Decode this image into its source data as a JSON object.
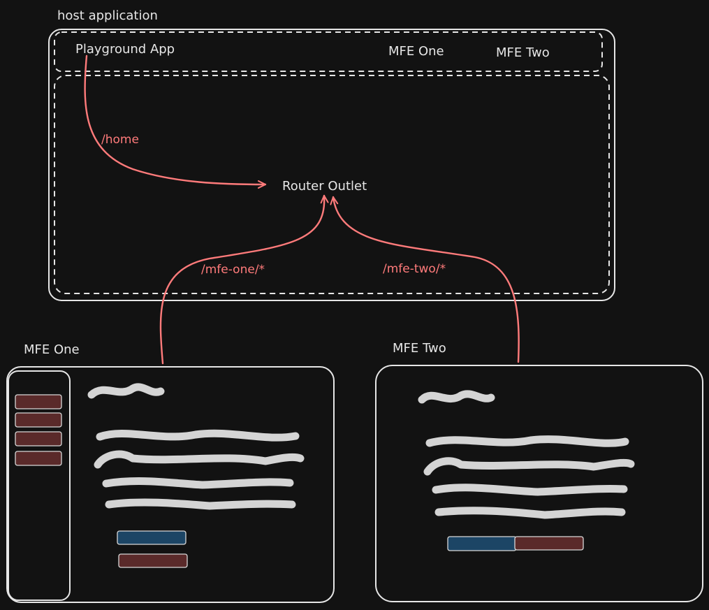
{
  "host": {
    "caption": "host application",
    "brand": "Playground App",
    "nav": [
      "MFE One",
      "MFE Two"
    ],
    "outlet": "Router Outlet"
  },
  "routes": {
    "home": "/home",
    "mfe_one": "/mfe-one/*",
    "mfe_two": "/mfe-two/*"
  },
  "mfe_one": {
    "caption": "MFE One",
    "sidebar_item_count": 4
  },
  "mfe_two": {
    "caption": "MFE Two"
  },
  "colors": {
    "background": "#121212",
    "stroke": "#e6e6e6",
    "route": "#ff7b7b",
    "button_red": "#5a2a2a",
    "button_blue": "#1c4565",
    "placeholder_text": "#d4d4d4"
  }
}
